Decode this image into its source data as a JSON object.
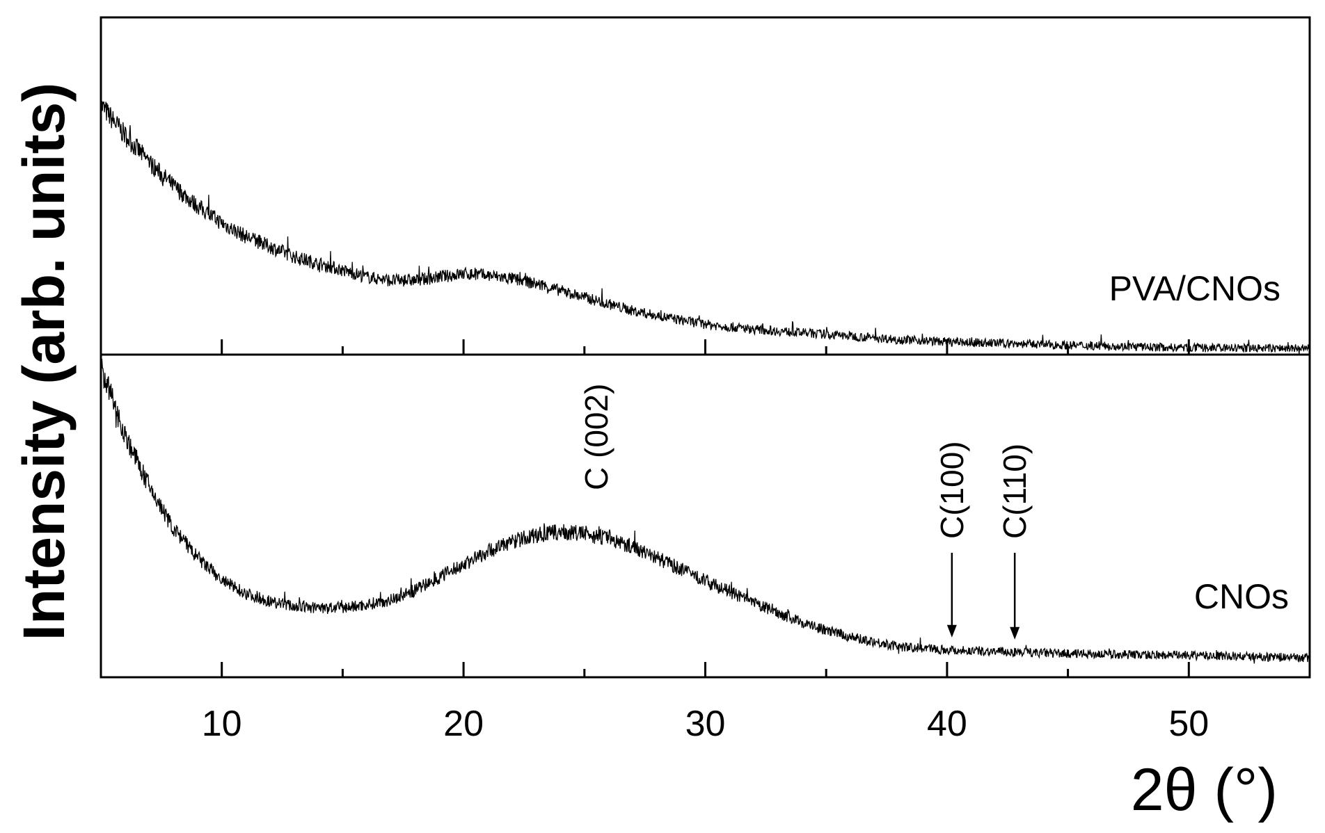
{
  "chart_data": {
    "type": "line",
    "ylabel": "Intensity (arb. units)",
    "xlabel": "2θ (°)",
    "xlim": [
      5,
      55
    ],
    "x_major_ticks": [
      10,
      20,
      30,
      40,
      50
    ],
    "x_minor_ticks": [
      15,
      25,
      35,
      45
    ],
    "x_tick_labels": [
      "10",
      "20",
      "30",
      "40",
      "50"
    ],
    "grid": false,
    "legend": "none",
    "line_color": "#000000",
    "panels": [
      {
        "position": "top",
        "series_label": "PVA/CNOs",
        "ylim": [
          0,
          1
        ],
        "x": [
          5,
          6,
          7,
          8,
          9,
          10,
          11,
          12,
          13,
          14,
          15,
          16,
          17,
          18,
          19,
          20,
          21,
          22,
          23,
          24,
          25,
          26,
          27,
          28,
          30,
          32,
          35,
          38,
          40,
          45,
          50,
          55
        ],
        "values": [
          0.74,
          0.65,
          0.57,
          0.5,
          0.44,
          0.39,
          0.35,
          0.32,
          0.29,
          0.27,
          0.25,
          0.23,
          0.22,
          0.22,
          0.23,
          0.24,
          0.235,
          0.225,
          0.21,
          0.19,
          0.17,
          0.15,
          0.13,
          0.115,
          0.09,
          0.075,
          0.06,
          0.045,
          0.038,
          0.028,
          0.02,
          0.018
        ],
        "annotations": []
      },
      {
        "position": "bottom",
        "series_label": "CNOs",
        "ylim": [
          0,
          1
        ],
        "x": [
          5,
          6,
          7,
          8,
          9,
          10,
          11,
          12,
          13,
          14,
          15,
          16,
          17,
          18,
          19,
          20,
          21,
          22,
          23,
          24,
          25,
          26,
          27,
          28,
          29,
          30,
          31,
          32,
          33,
          34,
          35,
          36,
          37,
          38,
          40,
          42,
          44,
          46,
          48,
          50,
          52,
          55
        ],
        "values": [
          0.96,
          0.75,
          0.59,
          0.46,
          0.37,
          0.3,
          0.26,
          0.235,
          0.22,
          0.215,
          0.215,
          0.225,
          0.24,
          0.27,
          0.31,
          0.35,
          0.39,
          0.42,
          0.44,
          0.45,
          0.445,
          0.43,
          0.405,
          0.37,
          0.335,
          0.3,
          0.265,
          0.23,
          0.2,
          0.17,
          0.145,
          0.125,
          0.11,
          0.095,
          0.085,
          0.08,
          0.075,
          0.072,
          0.07,
          0.068,
          0.065,
          0.06
        ],
        "annotations": [
          {
            "text": "C (002)",
            "x": 25.5,
            "arrow": false
          },
          {
            "text": "C(100)",
            "x": 40.2,
            "arrow": true
          },
          {
            "text": "C(110)",
            "x": 42.8,
            "arrow": true
          }
        ]
      }
    ]
  }
}
